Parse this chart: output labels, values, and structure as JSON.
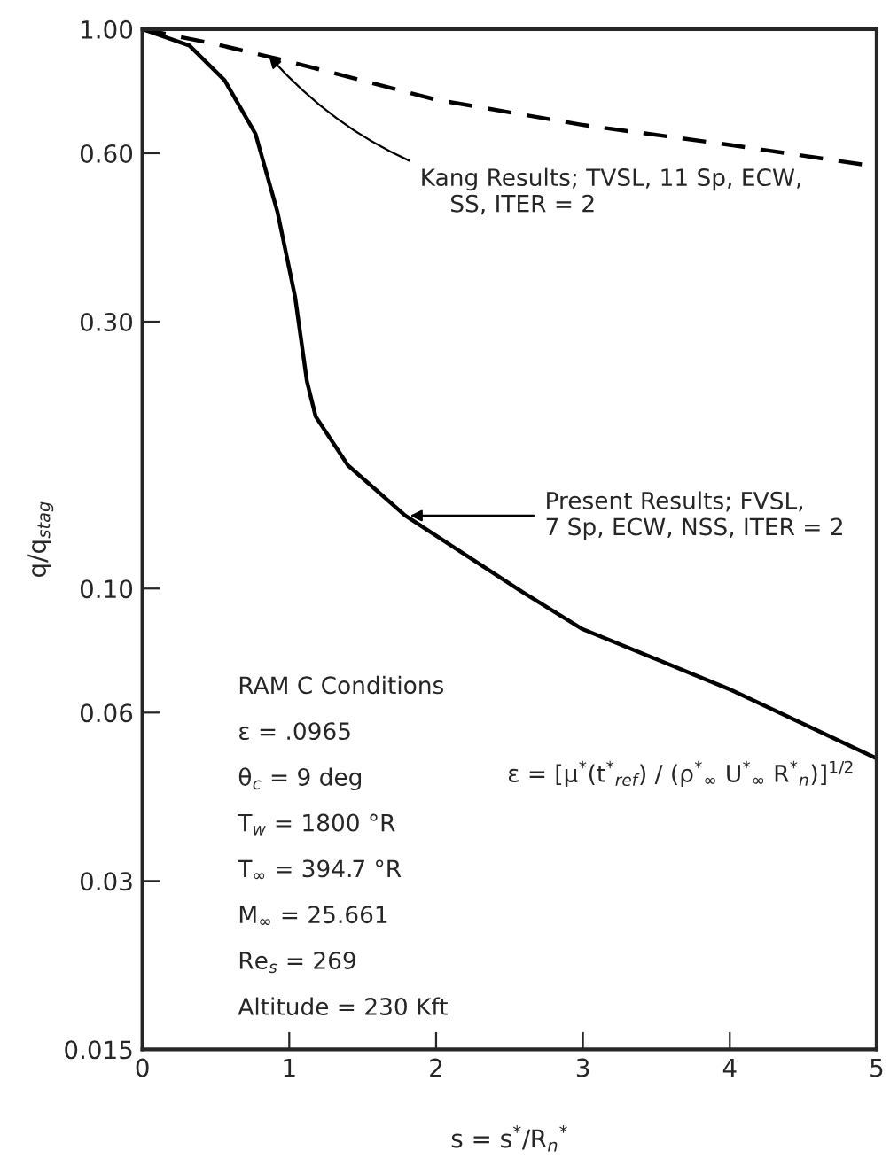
{
  "chart_data": {
    "type": "line",
    "xlabel": "s = s$^{*}$/R$_{n}$$^{*}$",
    "ylabel": "q/q$_{stag}$",
    "log": "y",
    "xlim": [
      0,
      5
    ],
    "xticks": [
      0,
      1,
      2,
      3,
      4,
      5
    ],
    "ylim": [
      0.015,
      1.0
    ],
    "yticks": [
      {
        "value": 1.0,
        "label": "1.00"
      },
      {
        "value": 0.6,
        "label": "0.60"
      },
      {
        "value": 0.3,
        "label": "0.30"
      },
      {
        "value": 0.1,
        "label": "0.10"
      },
      0.06,
      0.03,
      0.015
    ],
    "grid": false,
    "legend": false,
    "series": [
      {
        "color": "#000000",
        "line_style": "dashed",
        "x": [
          0,
          0.5,
          1,
          2,
          3,
          4,
          5
        ],
        "values": [
          1.0,
          0.94,
          0.875,
          0.748,
          0.674,
          0.621,
          0.568
        ]
      },
      {
        "color": "#000000",
        "line_style": "solid",
        "x": [
          0,
          0.32,
          0.56,
          0.77,
          0.92,
          1.04,
          1.12,
          1.18,
          1.4,
          1.79,
          2.59,
          2.99,
          3.99,
          5.0
        ],
        "values": [
          1.0,
          0.935,
          0.81,
          0.65,
          0.471,
          0.332,
          0.235,
          0.203,
          0.166,
          0.135,
          0.0985,
          0.0848,
          0.0662,
          0.0497
        ]
      }
    ],
    "annotations": [
      {
        "text": "Kang Results; TVSL, 11 Sp, ECW,\n    SS, ITER = 2",
        "x": 0.84,
        "y": 0.908
      },
      {
        "text": "Present Results; FVSL,\n7 Sp, ECW, NSS, ITER = 2",
        "x": 1.79,
        "y": 0.135
      },
      "RAM C Conditions",
      "ε = .0965",
      "θ$_{c}$ = 9 deg",
      "T$_{w}$ = 1800 °R",
      "T$_{∞}$ = 394.7 °R",
      "M$_{∞}$ = 25.661",
      "Re$_{s}$ = 269",
      "Altitude = 230 Kft",
      "ε = [μ$^{*}$(t$^{*}$$_{ref}$) / (ρ$^{*}$$_{∞}$ U$^{*}$$_{∞}$ R$^{*}$$_{n}$)]$^{1/2}$"
    ]
  }
}
